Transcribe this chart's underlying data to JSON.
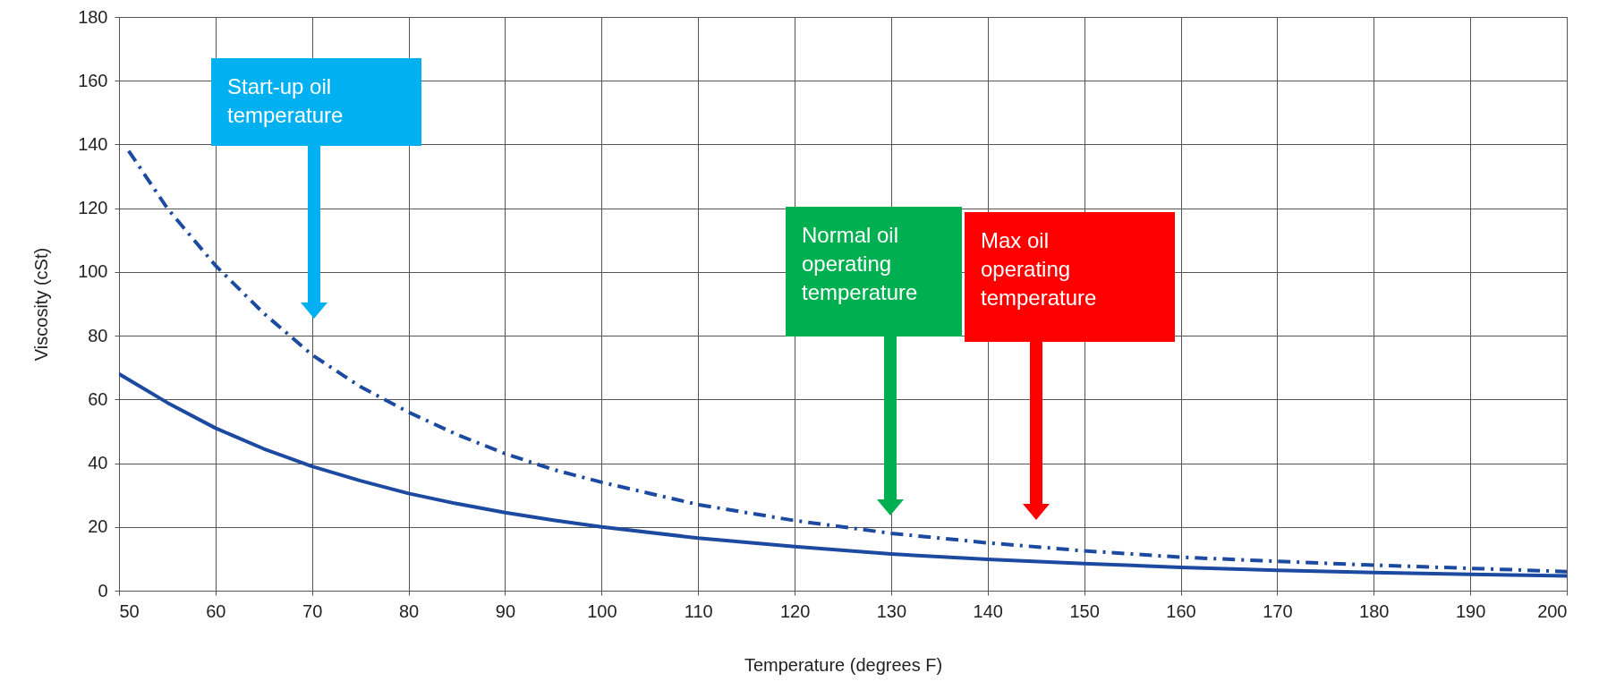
{
  "chart_data": {
    "type": "line",
    "xlabel": "Temperature (degrees F)",
    "ylabel": "Viscosity (cSt)",
    "xlim": [
      50,
      200
    ],
    "xticks": [
      50,
      60,
      70,
      80,
      90,
      100,
      110,
      120,
      130,
      140,
      150,
      160,
      170,
      180,
      190,
      200
    ],
    "ylim": [
      0,
      180
    ],
    "yticks": [
      0,
      20,
      40,
      60,
      80,
      100,
      120,
      140,
      160,
      180
    ],
    "grid": true,
    "series": [
      {
        "color": "#1b4aa0",
        "line_style": "solid",
        "x": [
          50,
          55,
          60,
          65,
          70,
          75,
          80,
          85,
          90,
          95,
          100,
          110,
          120,
          130,
          140,
          150,
          160,
          170,
          180,
          190,
          200
        ],
        "values": [
          68,
          59,
          51,
          44.5,
          39,
          34.5,
          30.5,
          27.3,
          24.5,
          22.1,
          20,
          16.5,
          13.8,
          11.5,
          9.8,
          8.5,
          7.3,
          6.4,
          5.7,
          5.1,
          4.6
        ]
      },
      {
        "color": "#1b4aa0",
        "line_style": "dashed",
        "x": [
          51,
          55,
          60,
          65,
          70,
          75,
          80,
          85,
          90,
          95,
          100,
          110,
          120,
          130,
          140,
          150,
          160,
          170,
          180,
          190,
          200
        ],
        "values": [
          138,
          120,
          102,
          87,
          74,
          64,
          56,
          49,
          43,
          38,
          34,
          27,
          22,
          18,
          15,
          12.5,
          10.5,
          9.2,
          8,
          7,
          6
        ]
      }
    ],
    "annotations": [
      "Start-up oil\ntemperature",
      "Normal oil\noperating\ntemperature",
      "Max oil\noperating\ntemperature"
    ]
  }
}
